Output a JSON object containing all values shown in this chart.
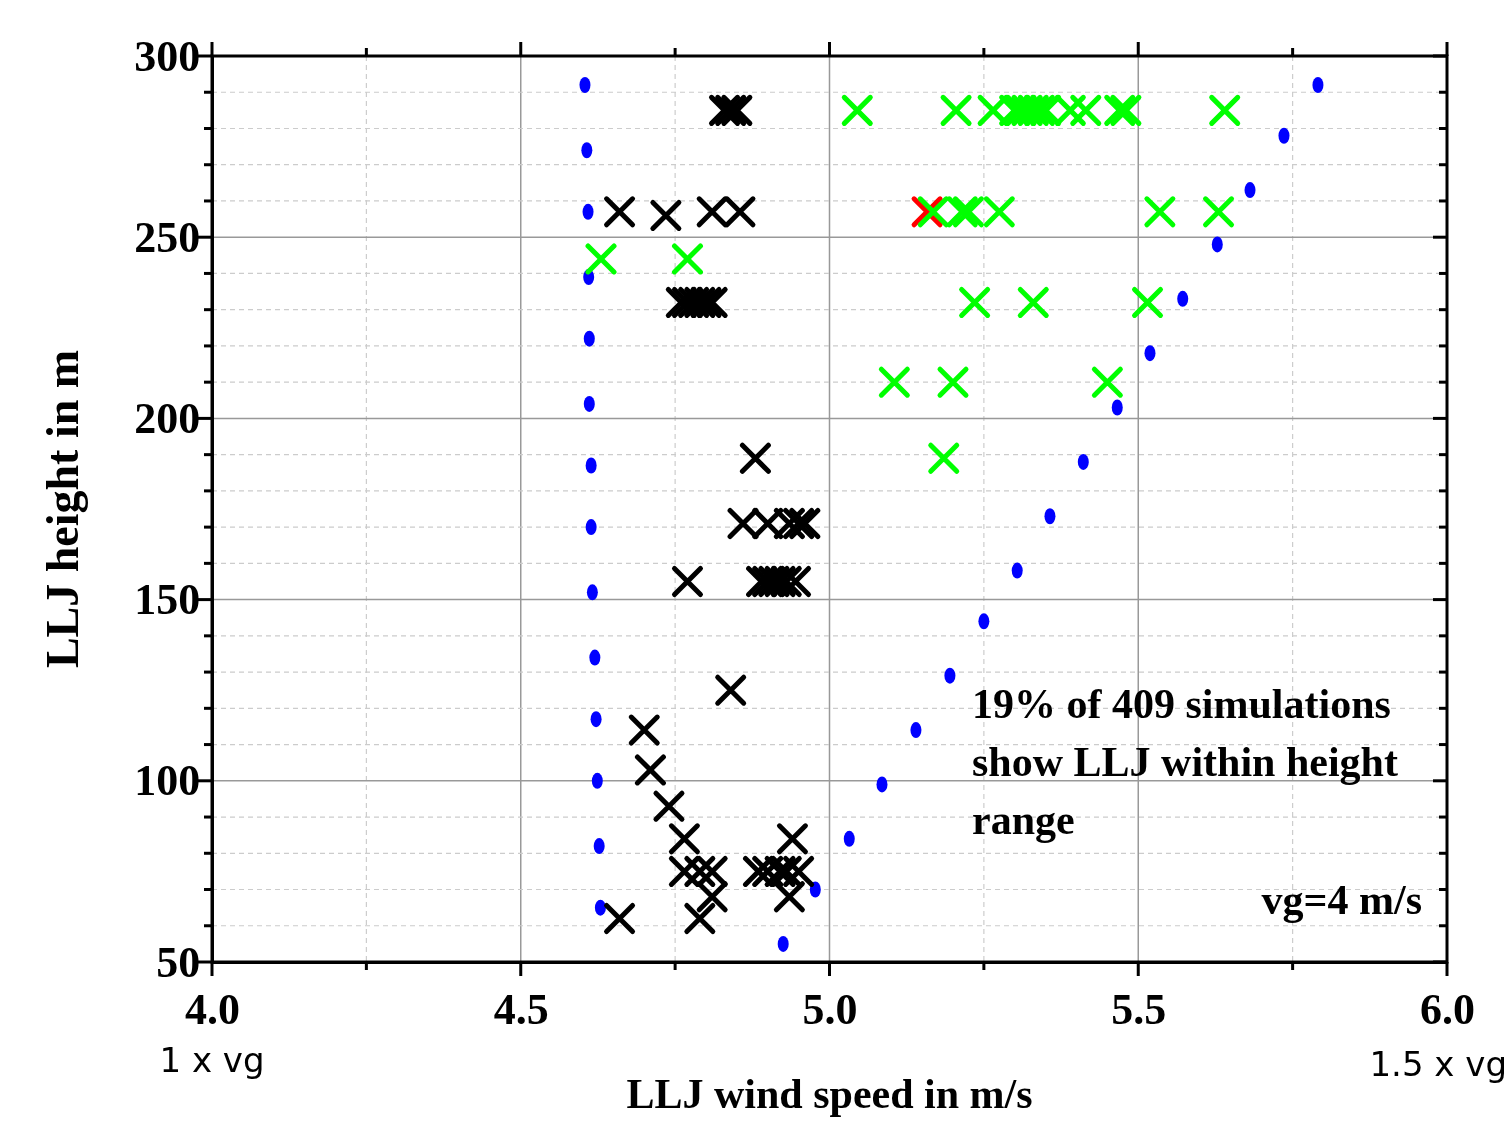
{
  "chart_data": {
    "type": "scatter",
    "xlabel": "LLJ wind speed in m/s",
    "ylabel": "LLJ height in m",
    "xlim": [
      4,
      6
    ],
    "ylim": [
      50,
      300
    ],
    "xticks": [
      {
        "value": 4,
        "label": "4.0"
      },
      {
        "value": 4.25,
        "label": null
      },
      {
        "value": 4.5,
        "label": "4.5"
      },
      {
        "value": 4.75,
        "label": null
      },
      {
        "value": 5,
        "label": "5.0"
      },
      {
        "value": 5.25,
        "label": null
      },
      {
        "value": 5.5,
        "label": "5.5"
      },
      {
        "value": 5.75,
        "label": null
      },
      {
        "value": 6,
        "label": "6.0"
      }
    ],
    "yticks": [
      50,
      {
        "value": 60,
        "label": null
      },
      {
        "value": 70,
        "label": null
      },
      {
        "value": 80,
        "label": null
      },
      {
        "value": 90,
        "label": null
      },
      100,
      {
        "value": 110,
        "label": null
      },
      {
        "value": 120,
        "label": null
      },
      {
        "value": 130,
        "label": null
      },
      {
        "value": 140,
        "label": null
      },
      150,
      {
        "value": 160,
        "label": null
      },
      {
        "value": 170,
        "label": null
      },
      {
        "value": 180,
        "label": null
      },
      {
        "value": 190,
        "label": null
      },
      200,
      {
        "value": 210,
        "label": null
      },
      {
        "value": 220,
        "label": null
      },
      {
        "value": 230,
        "label": null
      },
      {
        "value": 240,
        "label": null
      },
      250,
      {
        "value": 260,
        "label": null
      },
      {
        "value": 270,
        "label": null
      },
      {
        "value": 280,
        "label": null
      },
      {
        "value": 290,
        "label": null
      },
      300
    ],
    "grid": true,
    "series": [
      {
        "color": "#0000ff",
        "marker": "circle",
        "x": [
          4.604,
          4.607,
          4.609,
          4.61,
          4.611,
          4.611,
          4.614,
          4.614,
          4.616,
          4.62,
          4.622,
          4.624,
          4.627,
          4.629,
          4.925,
          4.977,
          5.032,
          5.085,
          5.14,
          5.195,
          5.25,
          5.304,
          5.357,
          5.411,
          5.466,
          5.519,
          5.572,
          5.628,
          5.681,
          5.736,
          5.791
        ],
        "values": [
          292,
          274,
          257,
          239,
          222,
          204,
          187,
          170,
          152,
          134,
          117,
          100,
          82,
          65,
          55,
          70,
          84,
          99,
          114,
          129,
          144,
          158,
          173,
          188,
          203,
          218,
          233,
          248,
          263,
          278,
          292
        ]
      },
      {
        "color": "#000000",
        "marker": "cross",
        "x": [
          4.83,
          4.84,
          4.85,
          4.66,
          4.735,
          4.81,
          4.855,
          4.76,
          4.77,
          4.78,
          4.79,
          4.8,
          4.81,
          4.88,
          4.86,
          4.9,
          4.935,
          4.95,
          4.96,
          4.77,
          4.89,
          4.9,
          4.91,
          4.92,
          4.93,
          4.945,
          4.84,
          4.7,
          4.71,
          4.74,
          4.765,
          4.94,
          4.765,
          4.79,
          4.81,
          4.885,
          4.9,
          4.92,
          4.93,
          4.95,
          4.81,
          4.935,
          4.66,
          4.79
        ],
        "values": [
          285,
          285,
          285,
          257,
          256,
          257,
          257,
          232,
          232,
          232,
          232,
          232,
          232,
          189,
          171,
          171,
          171,
          171,
          171,
          155,
          155,
          155,
          155,
          155,
          155,
          155,
          125,
          114,
          103,
          93,
          84,
          84,
          75,
          75,
          75,
          75,
          75,
          75,
          75,
          75,
          68,
          68,
          62,
          62
        ]
      },
      {
        "color": "#ff0000",
        "marker": "cross",
        "x": [
          5.158
        ],
        "values": [
          257
        ]
      },
      {
        "color": "#00ff00",
        "marker": "cross",
        "x": [
          5.045,
          5.205,
          5.265,
          5.3,
          5.31,
          5.32,
          5.33,
          5.34,
          5.35,
          5.39,
          5.415,
          5.47,
          5.48,
          5.64,
          5.168,
          5.215,
          5.225,
          5.275,
          5.535,
          5.63,
          4.63,
          4.77,
          5.235,
          5.33,
          5.515,
          5.105,
          5.2,
          5.45,
          5.185
        ],
        "values": [
          285,
          285,
          285,
          285,
          285,
          285,
          285,
          285,
          285,
          285,
          285,
          285,
          285,
          285,
          257,
          257,
          257,
          257,
          257,
          257,
          244,
          244,
          232,
          232,
          232,
          210,
          210,
          210,
          189
        ]
      }
    ],
    "annotations": [
      "19% of 409 simulations show LLJ within height range",
      "vg=4 m/s",
      "1 x vg",
      "1.5 x vg"
    ]
  }
}
